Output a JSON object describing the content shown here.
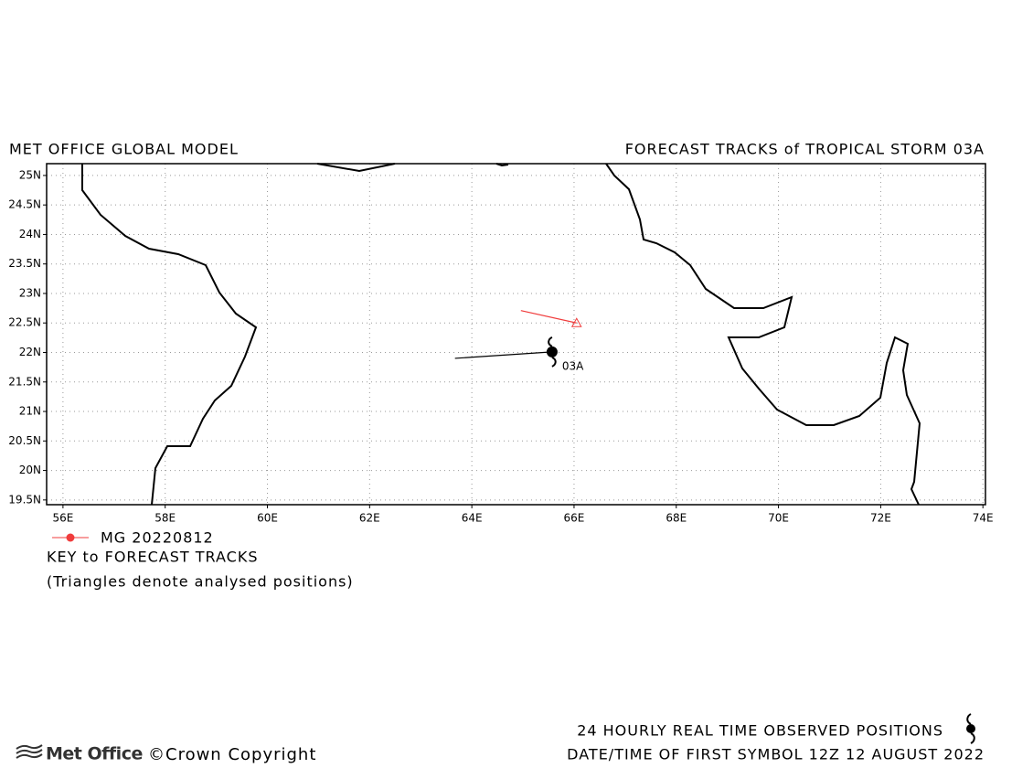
{
  "chart_data": {
    "type": "map",
    "title_left": "MET OFFICE GLOBAL MODEL",
    "title_right": "FORECAST TRACKS of TROPICAL STORM 03A",
    "xlim": [
      55.68,
      74.05
    ],
    "ylim": [
      19.42,
      25.2
    ],
    "xticks": [
      {
        "value": 56,
        "label": "56E"
      },
      {
        "value": 58,
        "label": "58E"
      },
      {
        "value": 60,
        "label": "60E"
      },
      {
        "value": 62,
        "label": "62E"
      },
      {
        "value": 64,
        "label": "64E"
      },
      {
        "value": 66,
        "label": "66E"
      },
      {
        "value": 68,
        "label": "68E"
      },
      {
        "value": 70,
        "label": "70E"
      },
      {
        "value": 72,
        "label": "72E"
      },
      {
        "value": 74,
        "label": "74E"
      }
    ],
    "yticks": [
      {
        "value": 19.5,
        "label": "19.5N"
      },
      {
        "value": 20,
        "label": "20N"
      },
      {
        "value": 20.5,
        "label": "20.5N"
      },
      {
        "value": 21,
        "label": "21N"
      },
      {
        "value": 21.5,
        "label": "21.5N"
      },
      {
        "value": 22,
        "label": "22N"
      },
      {
        "value": 22.5,
        "label": "22.5N"
      },
      {
        "value": 23,
        "label": "23N"
      },
      {
        "value": 23.5,
        "label": "23.5N"
      },
      {
        "value": 24,
        "label": "24N"
      },
      {
        "value": 24.5,
        "label": "24.5N"
      },
      {
        "value": 25,
        "label": "25N"
      }
    ],
    "grid": true,
    "series": [
      {
        "name": "MG 20220812",
        "color": "#f03c3c",
        "x": [
          64.96,
          66.05
        ],
        "values": [
          22.71,
          22.5
        ]
      }
    ],
    "observed": {
      "name": "03A",
      "color": "#000000",
      "x": [
        63.67,
        65.57
      ],
      "values": [
        21.9,
        22.01
      ]
    },
    "key_title": "KEY to FORECAST TRACKS",
    "key_note": "(Triangles denote analysed positions)",
    "footer_line1": "24 HOURLY REAL TIME OBSERVED POSITIONS",
    "footer_line2": "DATE/TIME OF FIRST SYMBOL 12Z 12 AUGUST 2022",
    "logo": "Met Office",
    "copyright": "©Crown Copyright"
  }
}
